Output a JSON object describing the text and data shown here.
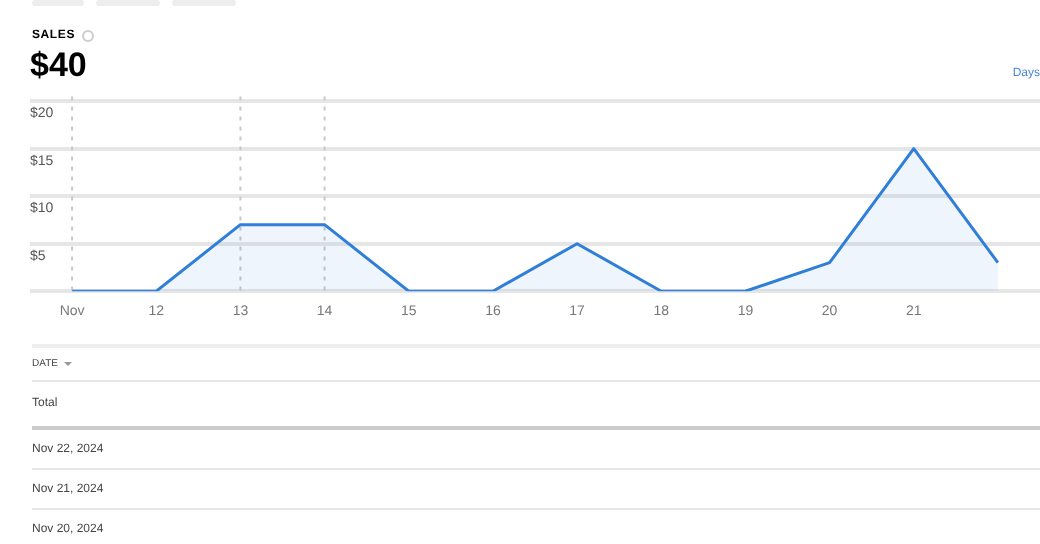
{
  "chart_data": {
    "type": "area",
    "title": "SALES",
    "subtitle": "$40",
    "categories": [
      "Nov",
      "12",
      "13",
      "14",
      "15",
      "16",
      "17",
      "18",
      "19",
      "20",
      "21",
      null
    ],
    "series": [
      {
        "color": "#2f7fd8",
        "values": [
          0,
          0,
          7,
          7,
          0,
          0,
          5,
          0,
          0,
          3,
          15,
          3
        ]
      }
    ],
    "ylim": [
      0,
      20.5
    ],
    "yticks": [
      {
        "value": 0,
        "label": null
      },
      {
        "value": 5,
        "label": "$5"
      },
      {
        "value": 10,
        "label": "$10"
      },
      {
        "value": 15,
        "label": "$15"
      },
      {
        "value": 20,
        "label": "$20"
      }
    ],
    "grid": "y",
    "legend": false,
    "line_style": "solid",
    "marker": "none",
    "ref_lines": [
      {
        "axis": "x",
        "value": "Nov",
        "color": "#c8c8c8",
        "line_style": "dotted"
      },
      {
        "axis": "x",
        "value": "13",
        "color": "#c8c8c8",
        "line_style": "dotted"
      },
      {
        "axis": "x",
        "value": "14",
        "color": "#c8c8c8",
        "line_style": "dotted"
      }
    ],
    "annotations": [
      "Days",
      "DATE",
      "Total",
      "Nov 22, 2024",
      "Nov 21, 2024",
      "Nov 20, 2024"
    ]
  }
}
